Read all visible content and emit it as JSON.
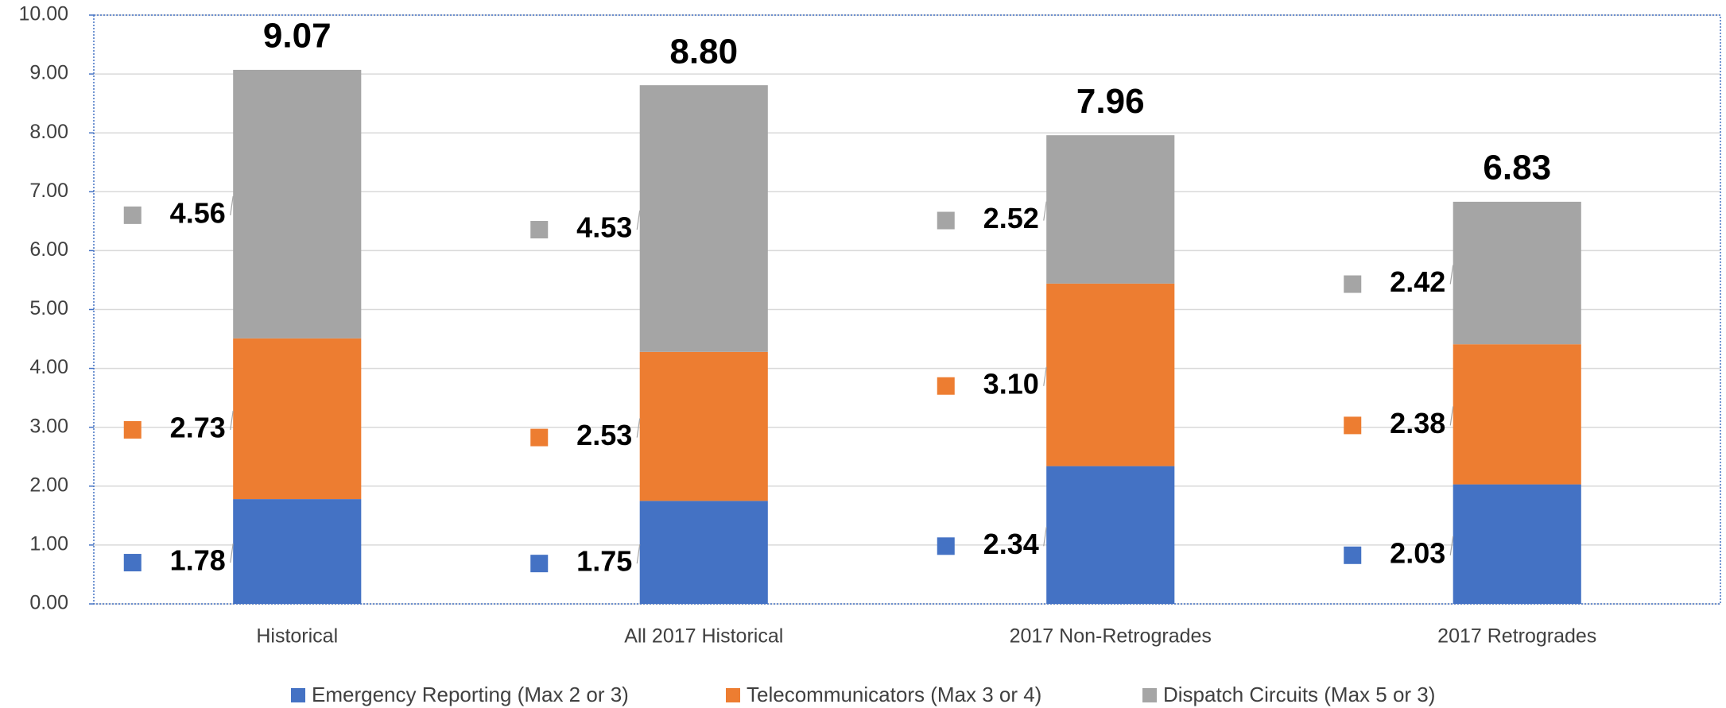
{
  "chart_data": {
    "type": "stacked_bar",
    "categories": [
      "Historical",
      "All 2017 Historical",
      "2017 Non-Retrogrades",
      "2017 Retrogrades"
    ],
    "series": [
      {
        "name": "Emergency Reporting (Max 2 or 3)",
        "color": "#4472c4",
        "values": [
          1.78,
          1.75,
          2.34,
          2.03
        ],
        "value_labels": [
          "1.78",
          "1.75",
          "2.34",
          "2.03"
        ]
      },
      {
        "name": "Telecommunicators (Max 3 or 4)",
        "color": "#ed7d31",
        "values": [
          2.73,
          2.53,
          3.1,
          2.38
        ],
        "value_labels": [
          "2.73",
          "2.53",
          "3.10",
          "2.38"
        ]
      },
      {
        "name": "Dispatch Circuits (Max 5 or 3)",
        "color": "#a5a5a5",
        "values": [
          4.56,
          4.53,
          2.52,
          2.42
        ],
        "value_labels": [
          "4.56",
          "4.53",
          "2.52",
          "2.42"
        ]
      }
    ],
    "totals": [
      9.07,
      8.8,
      7.96,
      6.83
    ],
    "total_labels": [
      "9.07",
      "8.80",
      "7.96",
      "6.83"
    ],
    "ylim": [
      0,
      10
    ],
    "yticks": [
      {
        "value": 0,
        "label": "0.00"
      },
      {
        "value": 1,
        "label": "1.00"
      },
      {
        "value": 2,
        "label": "2.00"
      },
      {
        "value": 3,
        "label": "3.00"
      },
      {
        "value": 4,
        "label": "4.00"
      },
      {
        "value": 5,
        "label": "5.00"
      },
      {
        "value": 6,
        "label": "6.00"
      },
      {
        "value": 7,
        "label": "7.00"
      },
      {
        "value": 8,
        "label": "8.00"
      },
      {
        "value": 9,
        "label": "9.00"
      },
      {
        "value": 10,
        "label": "10.00"
      }
    ],
    "grid": true,
    "legend": "bottom"
  }
}
